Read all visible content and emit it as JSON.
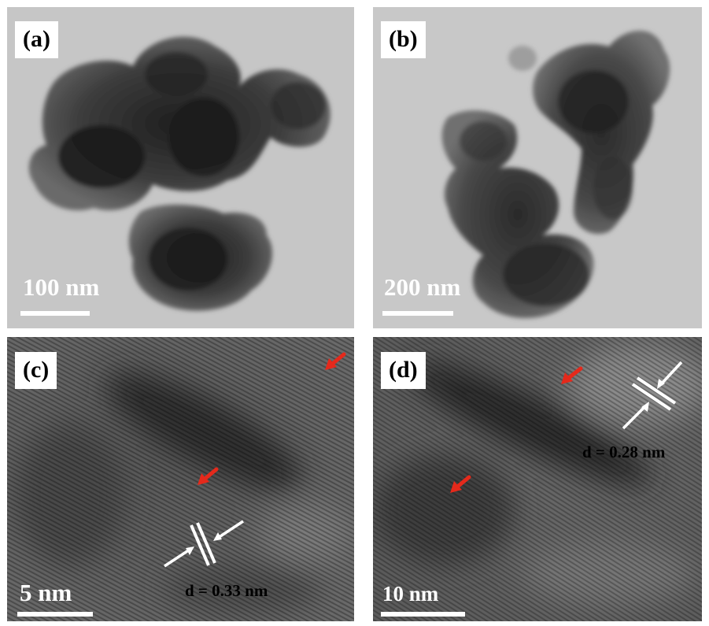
{
  "panels": {
    "a": {
      "label": "(a)",
      "scale": "100 nm"
    },
    "b": {
      "label": "(b)",
      "scale": "200 nm"
    },
    "c": {
      "label": "(c)",
      "scale": "5 nm",
      "spacing": "d = 0.33 nm"
    },
    "d": {
      "label": "(d)",
      "scale": "10 nm",
      "spacing": "d = 0.28 nm"
    }
  },
  "colors": {
    "tem_background": "#c4c4c4",
    "particle_dark": "#3a3a3a",
    "hrtem_background": "#5e5e5e",
    "arrow_red": "#e5291b",
    "arrow_white": "#ffffff"
  },
  "icons": {
    "red_arrow": "red-arrow-icon",
    "lattice_marker": "lattice-spacing-marker-icon"
  }
}
